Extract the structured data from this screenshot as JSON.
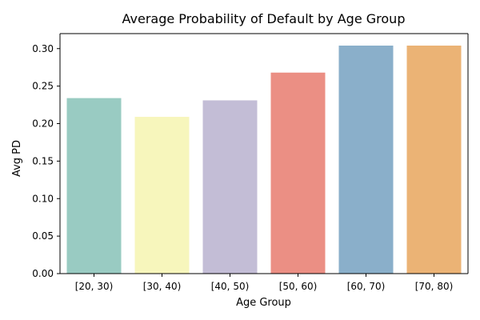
{
  "chart_data": {
    "type": "bar",
    "title": "Average Probability of Default by Age Group",
    "xlabel": "Age Group",
    "ylabel": "Avg PD",
    "categories": [
      "[20, 30)",
      "[30, 40)",
      "[40, 50)",
      "[50, 60)",
      "[60, 70)",
      "[70, 80)"
    ],
    "values": [
      0.234,
      0.209,
      0.231,
      0.268,
      0.304,
      0.304
    ],
    "colors": [
      "#99cbc2",
      "#f7f6bc",
      "#c3bdd6",
      "#eb8f84",
      "#8aafca",
      "#ebb375"
    ],
    "ylim": [
      0,
      0.32
    ],
    "yticks": [
      0.0,
      0.05,
      0.1,
      0.15,
      0.2,
      0.25,
      0.3
    ],
    "ytick_labels": [
      "0.00",
      "0.05",
      "0.10",
      "0.15",
      "0.20",
      "0.25",
      "0.30"
    ],
    "grid": false,
    "legend": "none"
  }
}
